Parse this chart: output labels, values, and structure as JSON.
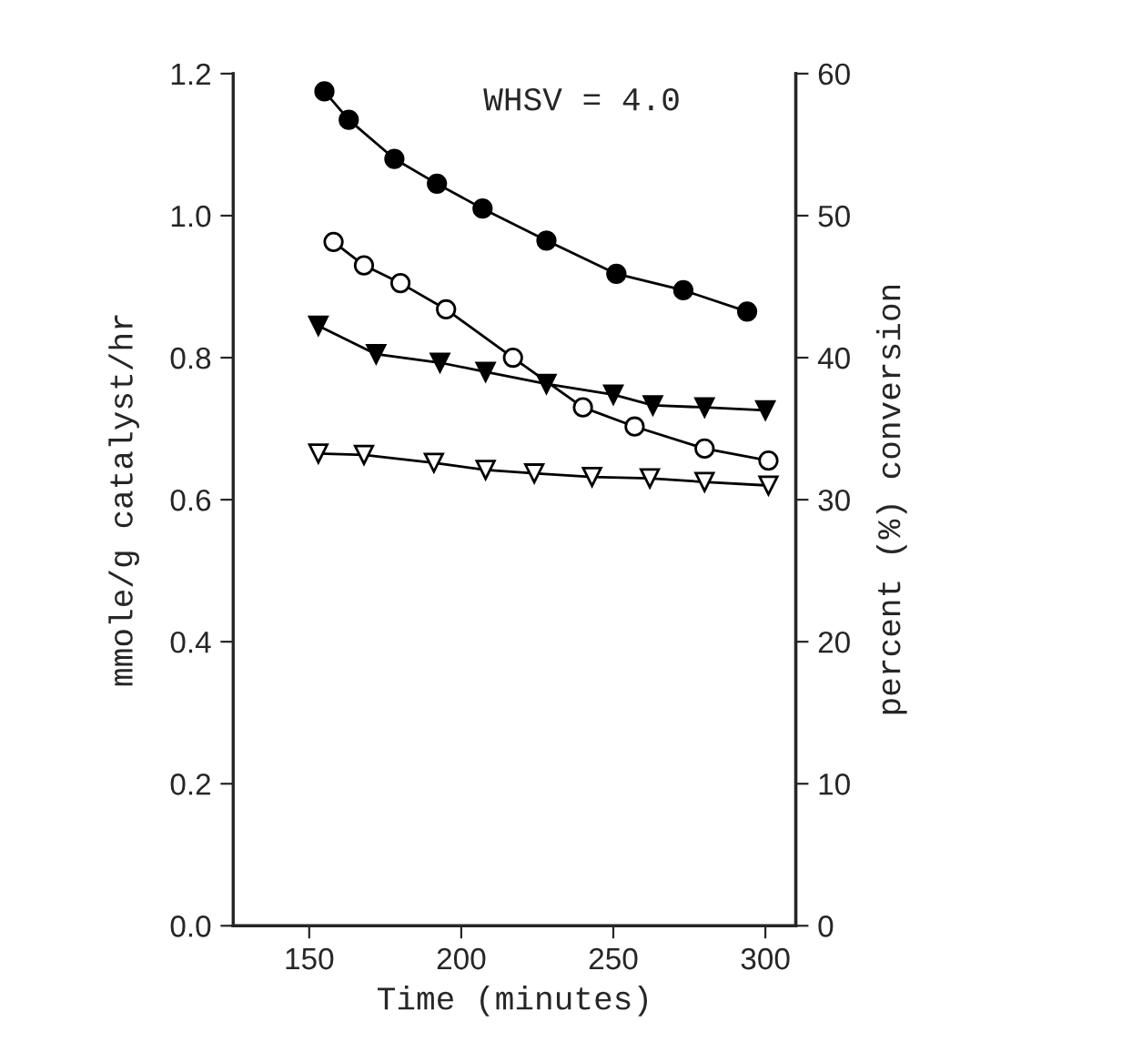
{
  "chart_data": {
    "type": "line",
    "xlabel": "Time (minutes)",
    "ylabel": "mmole/g catalyst/hr",
    "y2label": "percent (%) conversion",
    "annotations": [
      "WHSV = 4.0"
    ],
    "xlim": [
      125,
      310
    ],
    "xticks": [
      150,
      200,
      250,
      300
    ],
    "ylim": [
      0,
      1.2
    ],
    "yticks": [
      {
        "value": 0,
        "label": "0.0"
      },
      0.2,
      0.4,
      0.6,
      0.8,
      {
        "value": 1,
        "label": "1.0"
      },
      1.2
    ],
    "y2lim": [
      0,
      60
    ],
    "y2ticks": [
      0,
      10,
      20,
      30,
      40,
      50,
      60
    ],
    "grid": false,
    "series": [
      {
        "color": "#000000",
        "marker": "circle",
        "x": [
          155,
          163,
          178,
          192,
          207,
          228,
          251,
          273,
          294
        ],
        "values": [
          1.175,
          1.135,
          1.08,
          1.045,
          1.01,
          0.965,
          0.918,
          0.895,
          0.865
        ]
      },
      {
        "color": "#ffffff",
        "marker": "circle",
        "x": [
          158,
          168,
          180,
          195,
          217,
          240,
          257,
          280,
          301
        ],
        "values": [
          0.963,
          0.93,
          0.905,
          0.868,
          0.8,
          0.73,
          0.703,
          0.672,
          0.655
        ]
      },
      {
        "color": "#000000",
        "marker": "triangle",
        "x": [
          153,
          172,
          193,
          208,
          228,
          250,
          263,
          280,
          300
        ],
        "values": [
          0.845,
          0.805,
          0.793,
          0.78,
          0.763,
          0.748,
          0.733,
          0.73,
          0.726
        ]
      },
      {
        "color": "#ffffff",
        "marker": "triangle",
        "x": [
          153,
          168,
          191,
          208,
          224,
          243,
          262,
          280,
          301
        ],
        "values": [
          0.665,
          0.663,
          0.652,
          0.642,
          0.637,
          0.632,
          0.63,
          0.625,
          0.62
        ]
      }
    ]
  }
}
